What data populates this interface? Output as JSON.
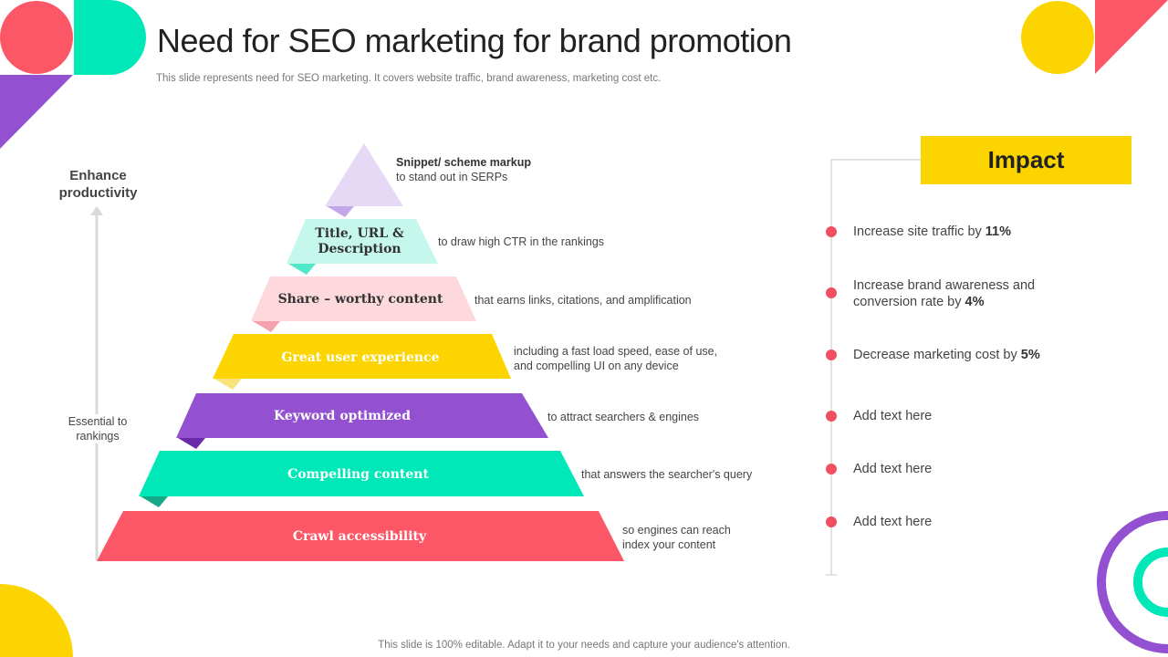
{
  "slide": {
    "title": "Need for SEO marketing for brand promotion",
    "subtitle": "This slide represents need for SEO marketing. It covers website traffic, brand awareness, marketing cost etc.",
    "footer": "This slide is 100% editable. Adapt it to your needs and capture your audience's attention."
  },
  "axis": {
    "top_label": "Enhance productivity",
    "mid_label": "Essential to rankings"
  },
  "pyramid": {
    "layers": [
      {
        "label": "",
        "color": "#e6d9f5",
        "desc_title": "Snippet/ scheme markup",
        "desc": "to stand out in SERPs"
      },
      {
        "label": "Title, URL & Description",
        "color": "#c6f7ec",
        "desc": "to draw high CTR in the rankings"
      },
      {
        "label": "Share – worthy content",
        "color": "#fdd9de",
        "desc": "that earns links, citations, and amplification"
      },
      {
        "label": "Great user experience",
        "color": "#fcd500",
        "desc": "including a fast load speed, ease of use, and compelling UI on any device"
      },
      {
        "label": "Keyword optimized",
        "color": "#9351d1",
        "desc": "to attract searchers & engines"
      },
      {
        "label": "Compelling content",
        "color": "#00e8b8",
        "desc": "that answers the searcher's query"
      },
      {
        "label": "Crawl accessibility",
        "color": "#fc5767",
        "desc": "so engines can reach index your content"
      }
    ]
  },
  "impact": {
    "heading": "Impact",
    "items": [
      {
        "text": "Increase site traffic by ",
        "bold": "11%"
      },
      {
        "text": "Increase brand awareness and conversion rate by ",
        "bold": "4%"
      },
      {
        "text": "Decrease marketing cost by ",
        "bold": "5%"
      },
      {
        "text": "Add text here",
        "bold": ""
      },
      {
        "text": "Add text here",
        "bold": ""
      },
      {
        "text": "Add text here",
        "bold": ""
      }
    ]
  },
  "colors": {
    "red": "#fc5767",
    "teal": "#00e8b8",
    "yellow": "#fcd500",
    "purple": "#9351d1",
    "bullet": "#f04e61"
  }
}
